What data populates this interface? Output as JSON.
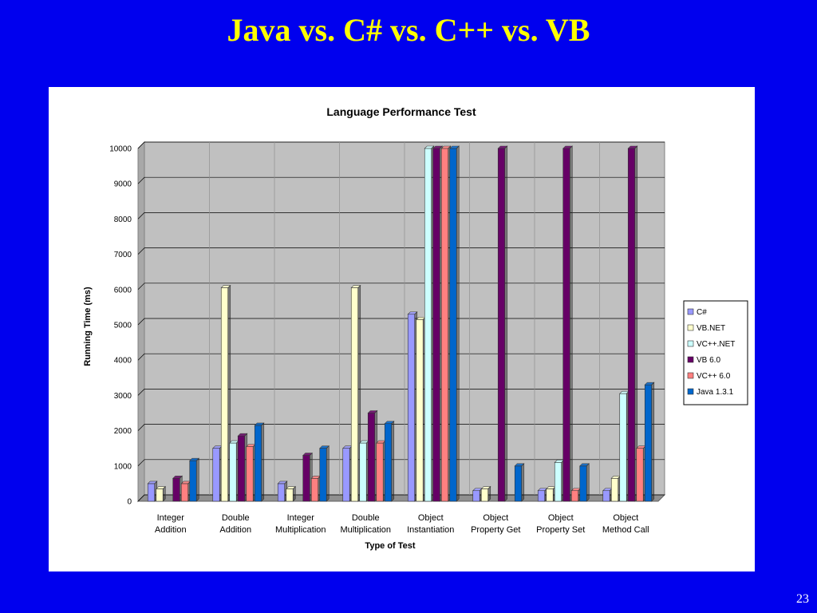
{
  "slide": {
    "title": "Java vs. C# vs. C++ vs. VB",
    "page_number": "23"
  },
  "chart_data": {
    "type": "bar",
    "title": "Language Performance Test",
    "xlabel": "Type of Test",
    "ylabel": "Running Time (ms)",
    "ylim": [
      0,
      10000
    ],
    "yticks": [
      0,
      1000,
      2000,
      3000,
      4000,
      5000,
      6000,
      7000,
      8000,
      9000,
      10000
    ],
    "grid": true,
    "legend_position": "right",
    "categories": [
      [
        "Integer",
        "Addition"
      ],
      [
        "Double",
        "Addition"
      ],
      [
        "Integer",
        "Multiplication"
      ],
      [
        "Double",
        "Multiplication"
      ],
      [
        "Object",
        "Instantiation"
      ],
      [
        "Object",
        "Property Get"
      ],
      [
        "Object",
        "Property Set"
      ],
      [
        "Object",
        "Method Call"
      ]
    ],
    "series": [
      {
        "name": "C#",
        "color": "#9999ff",
        "values": [
          500,
          1500,
          500,
          1500,
          5300,
          300,
          300,
          300
        ]
      },
      {
        "name": "VB.NET",
        "color": "#ffffcc",
        "values": [
          350,
          6050,
          350,
          6050,
          5150,
          350,
          350,
          650
        ]
      },
      {
        "name": "VC++.NET",
        "color": "#ccffff",
        "values": [
          0,
          1650,
          0,
          1650,
          10000,
          0,
          1100,
          3050
        ]
      },
      {
        "name": "VB 6.0",
        "color": "#660066",
        "values": [
          650,
          1850,
          1300,
          2500,
          10000,
          10000,
          10000,
          10000
        ]
      },
      {
        "name": "VC++ 6.0",
        "color": "#ff8080",
        "values": [
          500,
          1550,
          650,
          1650,
          10000,
          0,
          300,
          1500
        ]
      },
      {
        "name": "Java 1.3.1",
        "color": "#0066cc",
        "values": [
          1150,
          2150,
          1500,
          2200,
          10000,
          1000,
          1000,
          3300
        ]
      }
    ]
  }
}
